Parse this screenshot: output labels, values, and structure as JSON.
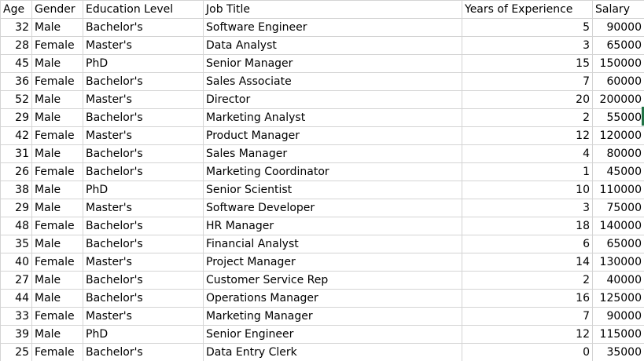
{
  "columns": [
    "Age",
    "Gender",
    "Education Level",
    "Job Title",
    "Years of Experience",
    "Salary"
  ],
  "rows": [
    [
      "32",
      "Male",
      "Bachelor's",
      "Software Engineer",
      "5",
      "90000"
    ],
    [
      "28",
      "Female",
      "Master's",
      "Data Analyst",
      "3",
      "65000"
    ],
    [
      "45",
      "Male",
      "PhD",
      "Senior Manager",
      "15",
      "150000"
    ],
    [
      "36",
      "Female",
      "Bachelor's",
      "Sales Associate",
      "7",
      "60000"
    ],
    [
      "52",
      "Male",
      "Master's",
      "Director",
      "20",
      "200000"
    ],
    [
      "29",
      "Male",
      "Bachelor's",
      "Marketing Analyst",
      "2",
      "55000"
    ],
    [
      "42",
      "Female",
      "Master's",
      "Product Manager",
      "12",
      "120000"
    ],
    [
      "31",
      "Male",
      "Bachelor's",
      "Sales Manager",
      "4",
      "80000"
    ],
    [
      "26",
      "Female",
      "Bachelor's",
      "Marketing Coordinator",
      "1",
      "45000"
    ],
    [
      "38",
      "Male",
      "PhD",
      "Senior Scientist",
      "10",
      "110000"
    ],
    [
      "29",
      "Male",
      "Master's",
      "Software Developer",
      "3",
      "75000"
    ],
    [
      "48",
      "Female",
      "Bachelor's",
      "HR Manager",
      "18",
      "140000"
    ],
    [
      "35",
      "Male",
      "Bachelor's",
      "Financial Analyst",
      "6",
      "65000"
    ],
    [
      "40",
      "Female",
      "Master's",
      "Project Manager",
      "14",
      "130000"
    ],
    [
      "27",
      "Male",
      "Bachelor's",
      "Customer Service Rep",
      "2",
      "40000"
    ],
    [
      "44",
      "Male",
      "Bachelor's",
      "Operations Manager",
      "16",
      "125000"
    ],
    [
      "33",
      "Female",
      "Master's",
      "Marketing Manager",
      "7",
      "90000"
    ],
    [
      "39",
      "Male",
      "PhD",
      "Senior Engineer",
      "12",
      "115000"
    ],
    [
      "25",
      "Female",
      "Bachelor's",
      "Data Entry Clerk",
      "0",
      "35000"
    ]
  ],
  "colors": {
    "gridline": "#d4d4d4",
    "selection_accent": "#217346"
  }
}
